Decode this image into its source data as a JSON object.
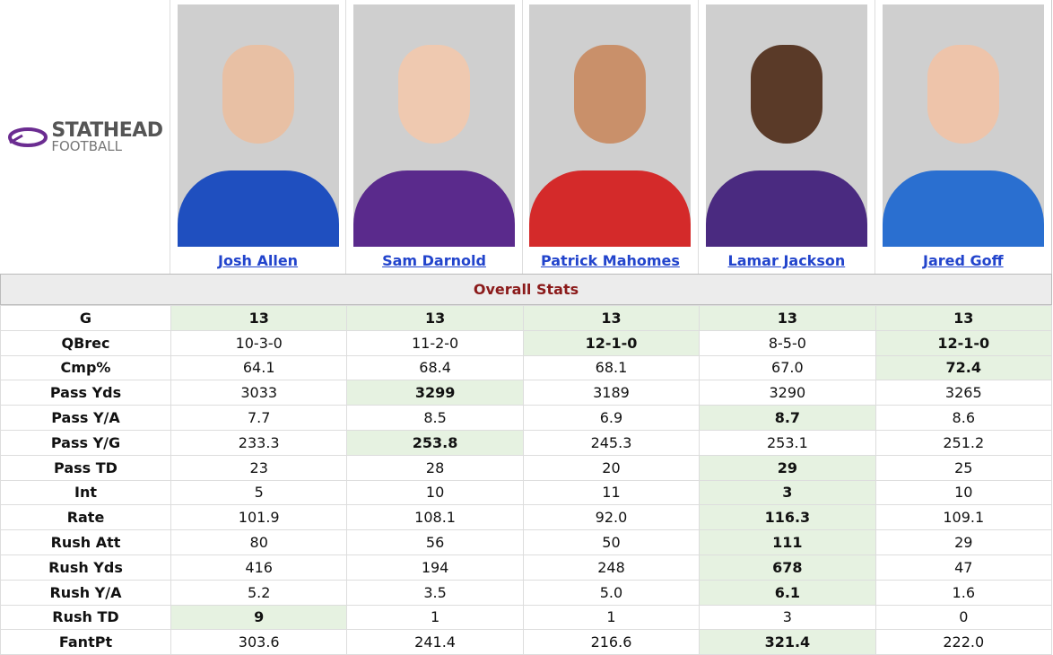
{
  "header": {
    "logo": {
      "brand": "STATHEAD",
      "sub": "FOOTBALL"
    },
    "players": [
      "Josh Allen",
      "Sam Darnold",
      "Patrick Mahomes",
      "Lamar Jackson",
      "Jared Goff"
    ]
  },
  "section": "Overall Stats",
  "rows": [
    {
      "label": "G",
      "values": [
        "13",
        "13",
        "13",
        "13",
        "13"
      ],
      "best": [
        0,
        1,
        2,
        3,
        4
      ]
    },
    {
      "label": "QBrec",
      "values": [
        "10-3-0",
        "11-2-0",
        "12-1-0",
        "8-5-0",
        "12-1-0"
      ],
      "best": [
        2,
        4
      ]
    },
    {
      "label": "Cmp%",
      "values": [
        "64.1",
        "68.4",
        "68.1",
        "67.0",
        "72.4"
      ],
      "best": [
        4
      ]
    },
    {
      "label": "Pass Yds",
      "values": [
        "3033",
        "3299",
        "3189",
        "3290",
        "3265"
      ],
      "best": [
        1
      ]
    },
    {
      "label": "Pass Y/A",
      "values": [
        "7.7",
        "8.5",
        "6.9",
        "8.7",
        "8.6"
      ],
      "best": [
        3
      ]
    },
    {
      "label": "Pass Y/G",
      "values": [
        "233.3",
        "253.8",
        "245.3",
        "253.1",
        "251.2"
      ],
      "best": [
        1
      ]
    },
    {
      "label": "Pass TD",
      "values": [
        "23",
        "28",
        "20",
        "29",
        "25"
      ],
      "best": [
        3
      ]
    },
    {
      "label": "Int",
      "values": [
        "5",
        "10",
        "11",
        "3",
        "10"
      ],
      "best": [
        3
      ]
    },
    {
      "label": "Rate",
      "values": [
        "101.9",
        "108.1",
        "92.0",
        "116.3",
        "109.1"
      ],
      "best": [
        3
      ]
    },
    {
      "label": "Rush Att",
      "values": [
        "80",
        "56",
        "50",
        "111",
        "29"
      ],
      "best": [
        3
      ]
    },
    {
      "label": "Rush Yds",
      "values": [
        "416",
        "194",
        "248",
        "678",
        "47"
      ],
      "best": [
        3
      ]
    },
    {
      "label": "Rush Y/A",
      "values": [
        "5.2",
        "3.5",
        "5.0",
        "6.1",
        "1.6"
      ],
      "best": [
        3
      ]
    },
    {
      "label": "Rush TD",
      "values": [
        "9",
        "1",
        "1",
        "3",
        "0"
      ],
      "best": [
        0
      ]
    },
    {
      "label": "FantPt",
      "values": [
        "303.6",
        "241.4",
        "216.6",
        "321.4",
        "222.0"
      ],
      "best": [
        3
      ]
    }
  ]
}
